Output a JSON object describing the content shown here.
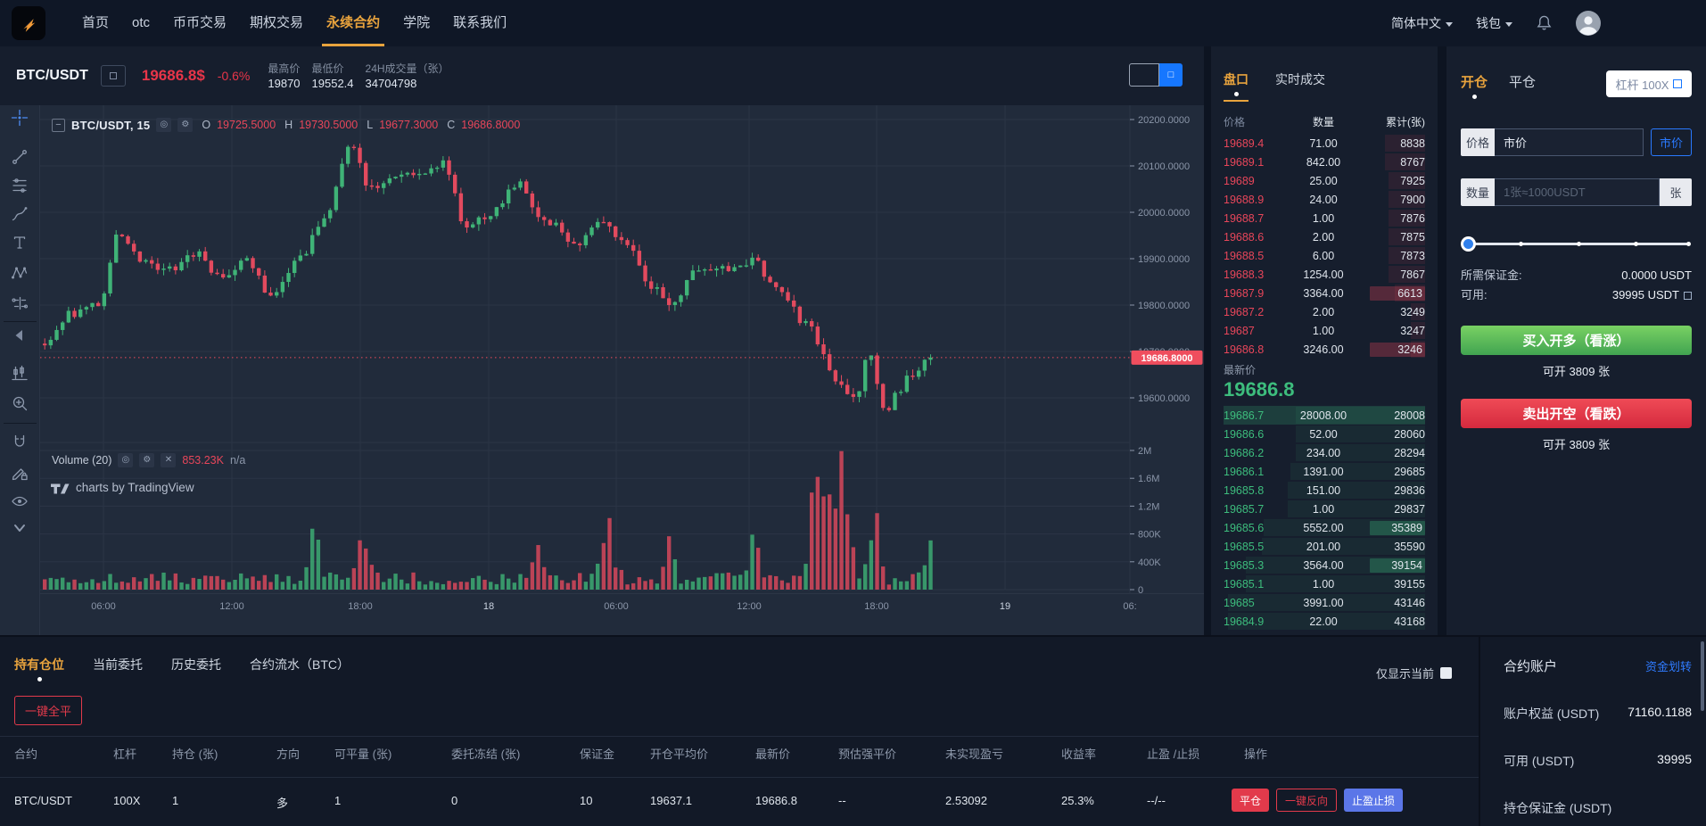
{
  "nav": {
    "items": [
      {
        "label": "首页",
        "active": false
      },
      {
        "label": "otc",
        "active": false
      },
      {
        "label": "币币交易",
        "active": false
      },
      {
        "label": "期权交易",
        "active": false
      },
      {
        "label": "永续合约",
        "active": true
      },
      {
        "label": "学院",
        "active": false
      },
      {
        "label": "联系我们",
        "active": false
      }
    ],
    "language": "简体中文",
    "wallet": "钱包"
  },
  "ticker": {
    "symbol": "BTC/USDT",
    "price": "19686.8$",
    "change": "-0.6%",
    "stats": [
      {
        "label": "最高价",
        "value": "19870"
      },
      {
        "label": "最低价",
        "value": "19552.4"
      },
      {
        "label": "24H成交量（张）",
        "value": "34704798"
      }
    ]
  },
  "chart_data": {
    "type": "candlestick",
    "symbol_legend": "BTC/USDT, 15",
    "ohlc_labels": [
      "O",
      "H",
      "L",
      "C"
    ],
    "ohlc": {
      "o": "19725.5000",
      "h": "19730.5000",
      "l": "19677.3000",
      "c": "19686.8000"
    },
    "volume_legend": "Volume (20)",
    "volume_value": "853.23K",
    "volume_na": "n/a",
    "watermark": "charts by TradingView",
    "last_price": 19686.8,
    "last_price_tag": "19686.8000",
    "price_ticks": [
      "20200.0000",
      "20100.0000",
      "20000.0000",
      "19900.0000",
      "19800.0000",
      "19700.0000",
      "19600.0000"
    ],
    "volume_ticks": [
      "2M",
      "1.6M",
      "1.2M",
      "800K",
      "400K",
      "0"
    ],
    "time_labels": [
      "06:00",
      "12:00",
      "18:00",
      "18",
      "06:00",
      "12:00",
      "18:00",
      "19",
      "06:"
    ],
    "toolbar_icons": [
      "crosshair",
      "trend-line",
      "fib-lines",
      "brush",
      "text-tool",
      "xabcd-pattern",
      "forecast-tool",
      "hide-toolbar-arrow",
      "bar-pattern",
      "zoom-in",
      "magnet-mode",
      "lock-drawings",
      "hide-drawings-eye",
      "more-tools-chevron"
    ],
    "anchors": [
      [
        0,
        19720
      ],
      [
        0.03,
        19780
      ],
      [
        0.06,
        19800
      ],
      [
        0.085,
        19955
      ],
      [
        0.11,
        19890
      ],
      [
        0.14,
        19880
      ],
      [
        0.17,
        19915
      ],
      [
        0.2,
        19860
      ],
      [
        0.23,
        19895
      ],
      [
        0.255,
        19825
      ],
      [
        0.285,
        19895
      ],
      [
        0.315,
        19990
      ],
      [
        0.345,
        20140
      ],
      [
        0.365,
        20060
      ],
      [
        0.4,
        20070
      ],
      [
        0.425,
        20085
      ],
      [
        0.45,
        20105
      ],
      [
        0.475,
        19965
      ],
      [
        0.505,
        20000
      ],
      [
        0.535,
        20060
      ],
      [
        0.565,
        19985
      ],
      [
        0.6,
        19935
      ],
      [
        0.625,
        19985
      ],
      [
        0.655,
        19935
      ],
      [
        0.685,
        19840
      ],
      [
        0.705,
        19790
      ],
      [
        0.735,
        19885
      ],
      [
        0.77,
        19880
      ],
      [
        0.8,
        19895
      ],
      [
        0.83,
        19825
      ],
      [
        0.86,
        19760
      ],
      [
        0.895,
        19640
      ],
      [
        0.915,
        19600
      ],
      [
        0.93,
        19690
      ],
      [
        0.95,
        19575
      ],
      [
        0.965,
        19620
      ],
      [
        0.98,
        19655
      ],
      [
        1,
        19687
      ]
    ],
    "volume_bumps": [
      [
        0.305,
        5,
        0.007
      ],
      [
        0.36,
        3,
        0.008
      ],
      [
        0.555,
        2.5,
        0.008
      ],
      [
        0.635,
        3.5,
        0.01
      ],
      [
        0.705,
        2.5,
        0.008
      ],
      [
        0.8,
        2.2,
        0.01
      ],
      [
        0.875,
        9,
        0.012
      ],
      [
        0.9,
        8,
        0.01
      ],
      [
        0.935,
        5,
        0.008
      ],
      [
        0.995,
        4,
        0.006
      ]
    ],
    "candle_count": 150,
    "seed": 1337
  },
  "orderbook": {
    "tabs": {
      "depth": "盘口",
      "trades": "实时成交"
    },
    "columns": [
      "价格",
      "数量",
      "累计(张)"
    ],
    "asks": [
      {
        "price": "19689.4",
        "amount": "71.00",
        "total": "8838"
      },
      {
        "price": "19689.1",
        "amount": "842.00",
        "total": "8767"
      },
      {
        "price": "19689",
        "amount": "25.00",
        "total": "7925"
      },
      {
        "price": "19688.9",
        "amount": "24.00",
        "total": "7900"
      },
      {
        "price": "19688.7",
        "amount": "1.00",
        "total": "7876"
      },
      {
        "price": "19688.6",
        "amount": "2.00",
        "total": "7875"
      },
      {
        "price": "19688.5",
        "amount": "6.00",
        "total": "7873"
      },
      {
        "price": "19688.3",
        "amount": "1254.00",
        "total": "7867"
      },
      {
        "price": "19687.9",
        "amount": "3364.00",
        "total": "6613",
        "flash": true
      },
      {
        "price": "19687.2",
        "amount": "2.00",
        "total": "3249"
      },
      {
        "price": "19687",
        "amount": "1.00",
        "total": "3247"
      },
      {
        "price": "19686.8",
        "amount": "3246.00",
        "total": "3246",
        "flash": true
      }
    ],
    "last_price_label": "最新价",
    "last_price": "19686.8",
    "bids": [
      {
        "price": "19686.7",
        "amount": "28008.00",
        "total": "28008",
        "row_flash": true
      },
      {
        "price": "19686.6",
        "amount": "52.00",
        "total": "28060"
      },
      {
        "price": "19686.2",
        "amount": "234.00",
        "total": "28294"
      },
      {
        "price": "19686.1",
        "amount": "1391.00",
        "total": "29685"
      },
      {
        "price": "19685.8",
        "amount": "151.00",
        "total": "29836"
      },
      {
        "price": "19685.7",
        "amount": "1.00",
        "total": "29837"
      },
      {
        "price": "19685.6",
        "amount": "5552.00",
        "total": "35389",
        "flash": true
      },
      {
        "price": "19685.5",
        "amount": "201.00",
        "total": "35590"
      },
      {
        "price": "19685.3",
        "amount": "3564.00",
        "total": "39154",
        "flash": true
      },
      {
        "price": "19685.1",
        "amount": "1.00",
        "total": "39155"
      },
      {
        "price": "19685",
        "amount": "3991.00",
        "total": "43146"
      },
      {
        "price": "19684.9",
        "amount": "22.00",
        "total": "43168"
      }
    ]
  },
  "trade": {
    "tab_open": "开仓",
    "tab_close": "平仓",
    "leverage": "杠杆 100X",
    "price_label": "价格",
    "price_value": "市价",
    "market_btn": "市价",
    "amount_label": "数量",
    "amount_placeholder": "1张≈1000USDT",
    "unit": "张",
    "margin_label": "所需保证金:",
    "margin_value": "0.0000 USDT",
    "avail_label": "可用:",
    "avail_value": "39995 USDT",
    "buy_btn": "买入开多（看涨）",
    "buy_hint": "可开 3809 张",
    "sell_btn": "卖出开空（看跌）",
    "sell_hint": "可开 3809 张"
  },
  "positions": {
    "tabs": [
      {
        "label": "持有仓位",
        "active": true
      },
      {
        "label": "当前委托",
        "active": false
      },
      {
        "label": "历史委托",
        "active": false
      },
      {
        "label": "合约流水（BTC）",
        "active": false
      }
    ],
    "close_all": "一键全平",
    "only_current": "仅显示当前",
    "headers": [
      "合约",
      "杠杆",
      "持仓 (张)",
      "方向",
      "可平量 (张)",
      "委托冻结 (张)",
      "保证金",
      "开仓平均价",
      "最新价",
      "预估强平价",
      "未实现盈亏",
      "收益率",
      "止盈 /止损",
      "操作"
    ],
    "row": [
      "BTC/USDT",
      "100X",
      "1",
      "多",
      "1",
      "0",
      "10",
      "19637.1",
      "19686.8",
      "--",
      "2.53092",
      "25.3%",
      "--/--"
    ],
    "actions": [
      "平仓",
      "一键反向",
      "止盈止损"
    ]
  },
  "account": {
    "title": "合约账户",
    "transfer": "资金划转",
    "rows": [
      {
        "label": "账户权益 (USDT)",
        "value": "71160.1188"
      },
      {
        "label": "可用 (USDT)",
        "value": "39995"
      },
      {
        "label": "持仓保证金 (USDT)",
        "value": ""
      }
    ]
  }
}
